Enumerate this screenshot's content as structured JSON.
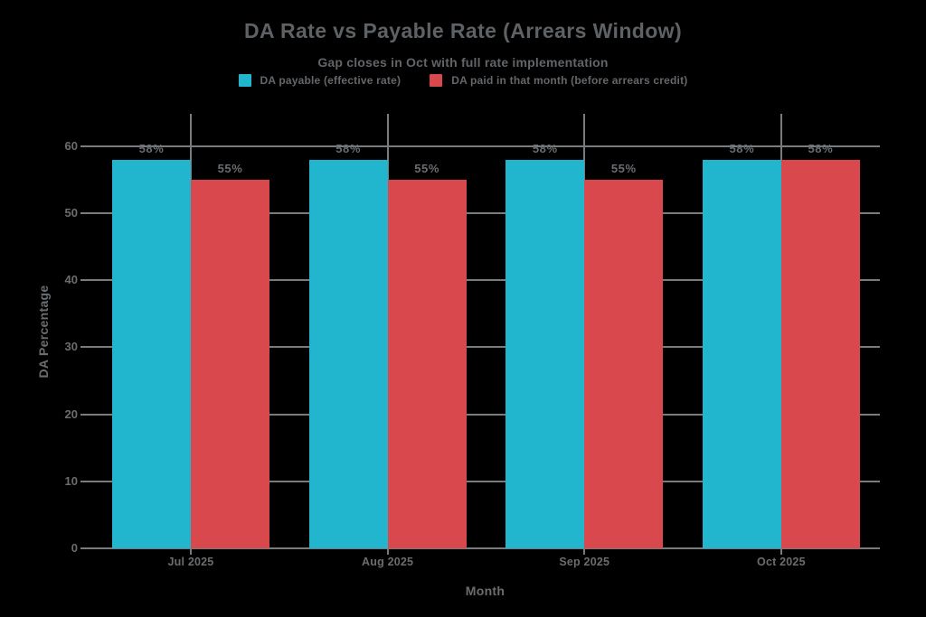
{
  "background_color": "#000000",
  "chart_data": {
    "type": "bar",
    "title": "DA Rate vs Payable Rate (Arrears Window)",
    "subtitle": "Gap closes in Oct with full rate implementation",
    "xlabel": "Month",
    "ylabel": "DA Percentage",
    "categories": [
      "Jul 2025",
      "Aug 2025",
      "Sep 2025",
      "Oct 2025"
    ],
    "series": [
      {
        "name": "DA payable (effective rate)",
        "color": "#22b6ce",
        "values": [
          58,
          58,
          58,
          58
        ],
        "labels": [
          "58%",
          "58%",
          "58%",
          "58%"
        ]
      },
      {
        "name": "DA paid in that month (before arrears credit)",
        "color": "#d9484c",
        "values": [
          55,
          55,
          55,
          58
        ],
        "labels": [
          "55%",
          "55%",
          "55%",
          "58%"
        ]
      }
    ],
    "yticks": [
      0,
      10,
      20,
      30,
      40,
      50,
      60
    ],
    "ylim": [
      0,
      64.85
    ],
    "grid": true,
    "legend_position": "top",
    "colors": {
      "title_text": "#5e6265",
      "axis_text": "#6a6d70",
      "gridline": "#797c7e",
      "background": "#000000"
    }
  }
}
